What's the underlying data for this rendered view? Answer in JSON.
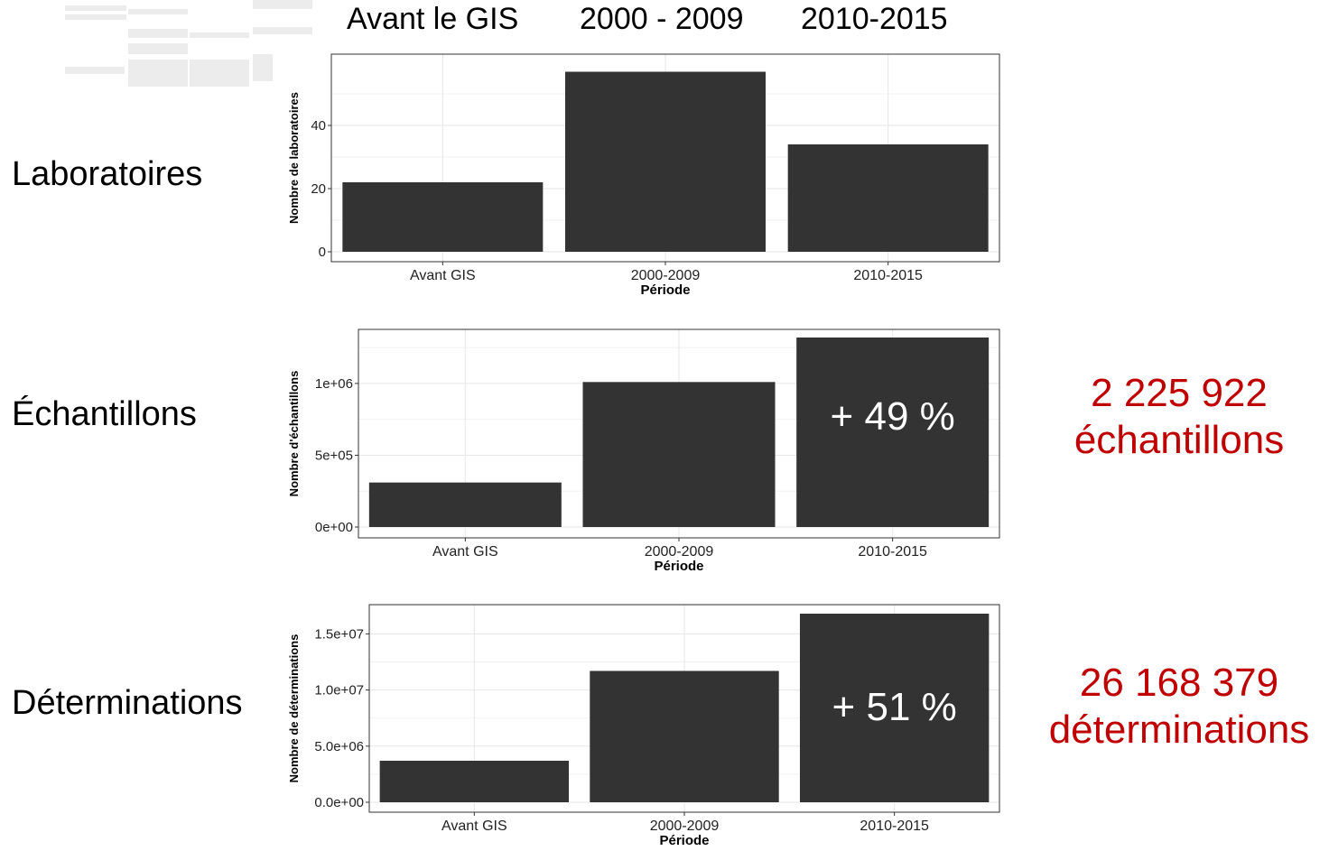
{
  "headers": [
    "Avant le GIS",
    "2000 - 2009",
    "2010-2015"
  ],
  "rows": [
    "Laboratoires",
    "Échantillons",
    "Déterminations"
  ],
  "totals": {
    "echantillons": {
      "number": "2 225 922",
      "word": "échantillons"
    },
    "determinations": {
      "number": "26 168 379",
      "word": "déterminations"
    }
  },
  "colors": {
    "bar": "#333333",
    "accent": "#c00000",
    "grid": "#e6e6e6"
  },
  "chart_data": [
    {
      "type": "bar",
      "categories": [
        "Avant GIS",
        "2000-2009",
        "2010-2015"
      ],
      "values": [
        22,
        57,
        34
      ],
      "xlabel": "Période",
      "ylabel": "Nombre de laboratoires",
      "ylim": [
        0,
        60
      ],
      "yticks": [
        0,
        20,
        40
      ],
      "ytick_labels": [
        "0",
        "20",
        "40"
      ],
      "grid": true
    },
    {
      "type": "bar",
      "categories": [
        "Avant GIS",
        "2000-2009",
        "2010-2015"
      ],
      "values": [
        310000,
        1010000,
        1320000
      ],
      "xlabel": "Période",
      "ylabel": "Nombre d'échantillons",
      "ylim": [
        0,
        1320000
      ],
      "yticks": [
        0,
        500000,
        1000000
      ],
      "ytick_labels": [
        "0e+00",
        "5e+05",
        "1e+06"
      ],
      "grid": true,
      "annotation": "+ 49 %"
    },
    {
      "type": "bar",
      "categories": [
        "Avant GIS",
        "2000-2009",
        "2010-2015"
      ],
      "values": [
        3700000,
        11700000,
        16800000
      ],
      "xlabel": "Période",
      "ylabel": "Nombre de déterminations",
      "ylim": [
        0,
        16800000
      ],
      "yticks": [
        0,
        5000000,
        10000000,
        15000000
      ],
      "ytick_labels": [
        "0.0e+00",
        "5.0e+06",
        "1.0e+07",
        "1.5e+07"
      ],
      "grid": true,
      "annotation": "+ 51 %"
    }
  ]
}
